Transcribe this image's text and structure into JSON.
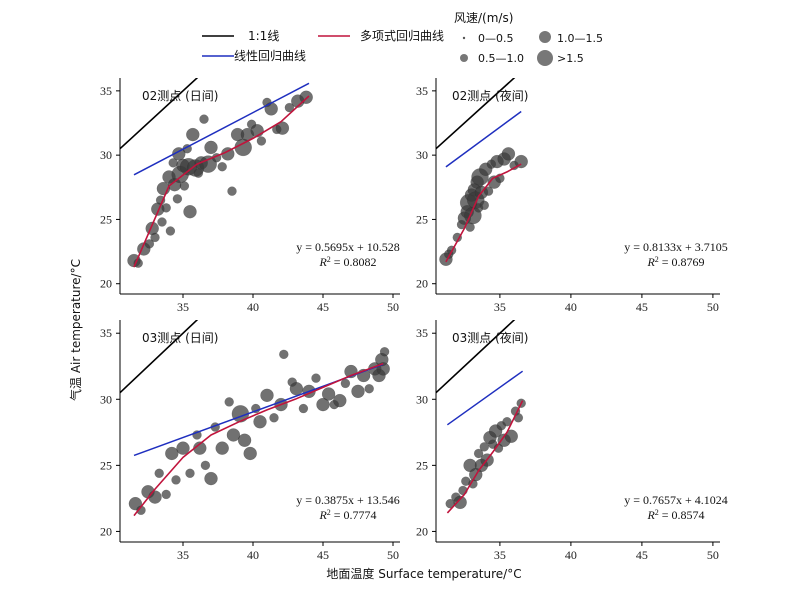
{
  "legend": {
    "lines": [
      {
        "label": "1:1线",
        "color": "#000000"
      },
      {
        "label": "多项式回归曲线",
        "color": "#c0143c"
      },
      {
        "label": "线性回归曲线",
        "color": "#1f2fbf"
      }
    ],
    "wind_title": "风速/(m/s)",
    "wind_classes": [
      "0—0.5",
      "1.0—1.5",
      "0.5—1.0",
      ">1.5"
    ]
  },
  "axes": {
    "xlabel": "地面温度 Surface temperature/°C",
    "ylabel": "气温 Air temperature/°C",
    "x_ticks": [
      "35",
      "40",
      "45",
      "50"
    ],
    "y_ticks": [
      "20",
      "25",
      "30",
      "35"
    ]
  },
  "chart_data": [
    {
      "type": "scatter",
      "title": "02测点 (日间)",
      "xlim": [
        30.5,
        50.5
      ],
      "ylim": [
        19.2,
        36
      ],
      "eqn_main": "y = 0.5695x + 10.528",
      "eqn_r2": "0.8082",
      "linear": [
        0.5695,
        10.528
      ],
      "poly_x": [
        31.5,
        34,
        36,
        38,
        40,
        42,
        44
      ],
      "poly_y": [
        21.3,
        27.6,
        29.3,
        30.2,
        31.3,
        32.6,
        34.6
      ],
      "points": [
        [
          31.5,
          21.8,
          2
        ],
        [
          31.8,
          21.6,
          1
        ],
        [
          32.2,
          22.7,
          2
        ],
        [
          32.6,
          23.1,
          1
        ],
        [
          32.8,
          24.3,
          2
        ],
        [
          33.0,
          23.6,
          1
        ],
        [
          33.2,
          25.8,
          2
        ],
        [
          33.4,
          26.5,
          1
        ],
        [
          33.5,
          24.8,
          1
        ],
        [
          33.6,
          27.4,
          2
        ],
        [
          33.8,
          25.9,
          1
        ],
        [
          34.0,
          28.3,
          2
        ],
        [
          34.1,
          24.1,
          1
        ],
        [
          34.3,
          29.4,
          1
        ],
        [
          34.4,
          27.7,
          2
        ],
        [
          34.6,
          26.6,
          1
        ],
        [
          34.7,
          30.1,
          2
        ],
        [
          34.8,
          28.5,
          3
        ],
        [
          35.0,
          29.2,
          2
        ],
        [
          35.1,
          27.6,
          1
        ],
        [
          35.3,
          30.5,
          1
        ],
        [
          35.4,
          29.1,
          3
        ],
        [
          35.5,
          25.6,
          2
        ],
        [
          35.7,
          31.6,
          2
        ],
        [
          35.9,
          29.0,
          3
        ],
        [
          36.1,
          28.6,
          1
        ],
        [
          36.3,
          29.4,
          2
        ],
        [
          36.5,
          32.8,
          1
        ],
        [
          36.8,
          29.3,
          3
        ],
        [
          37.0,
          30.6,
          2
        ],
        [
          37.4,
          29.8,
          1
        ],
        [
          37.8,
          29.1,
          1
        ],
        [
          38.2,
          30.1,
          2
        ],
        [
          38.5,
          27.2,
          1
        ],
        [
          38.9,
          31.6,
          2
        ],
        [
          39.3,
          30.6,
          3
        ],
        [
          39.6,
          31.6,
          2
        ],
        [
          39.9,
          32.4,
          1
        ],
        [
          40.3,
          31.9,
          2
        ],
        [
          40.6,
          31.1,
          1
        ],
        [
          41.0,
          34.1,
          1
        ],
        [
          41.3,
          33.6,
          2
        ],
        [
          41.7,
          32.0,
          1
        ],
        [
          42.1,
          32.1,
          2
        ],
        [
          42.6,
          33.7,
          1
        ],
        [
          43.2,
          34.2,
          2
        ],
        [
          43.8,
          34.5,
          2
        ]
      ]
    },
    {
      "type": "scatter",
      "title": "02测点 (夜间)",
      "xlim": [
        30.5,
        50.5
      ],
      "ylim": [
        19.2,
        36
      ],
      "eqn_main": "y = 0.8133x + 3.7105",
      "eqn_r2": "0.8769",
      "linear": [
        0.8133,
        3.7105
      ],
      "poly_x": [
        31.2,
        32.5,
        33.5,
        34.5,
        35.5,
        36.5
      ],
      "poly_y": [
        21.7,
        24.3,
        26.8,
        28.2,
        28.7,
        29.3
      ],
      "points": [
        [
          31.2,
          21.9,
          2
        ],
        [
          31.4,
          22.3,
          1
        ],
        [
          31.6,
          22.6,
          1
        ],
        [
          32.0,
          23.6,
          1
        ],
        [
          32.3,
          24.6,
          1
        ],
        [
          32.5,
          25.1,
          2
        ],
        [
          32.7,
          25.6,
          2
        ],
        [
          32.8,
          26.3,
          3
        ],
        [
          32.9,
          24.4,
          1
        ],
        [
          33.0,
          26.9,
          2
        ],
        [
          33.1,
          25.3,
          3
        ],
        [
          33.2,
          27.3,
          2
        ],
        [
          33.3,
          26.5,
          3
        ],
        [
          33.4,
          27.9,
          2
        ],
        [
          33.5,
          25.9,
          1
        ],
        [
          33.6,
          28.3,
          3
        ],
        [
          33.7,
          27.1,
          2
        ],
        [
          33.9,
          26.1,
          1
        ],
        [
          34.0,
          28.9,
          2
        ],
        [
          34.2,
          27.2,
          1
        ],
        [
          34.4,
          29.3,
          1
        ],
        [
          34.6,
          27.9,
          2
        ],
        [
          34.8,
          29.5,
          2
        ],
        [
          35.0,
          28.2,
          1
        ],
        [
          35.3,
          29.7,
          2
        ],
        [
          35.6,
          30.1,
          2
        ],
        [
          36.0,
          29.2,
          1
        ],
        [
          36.5,
          29.5,
          2
        ]
      ]
    },
    {
      "type": "scatter",
      "title": "03测点 (日间)",
      "xlim": [
        30.5,
        50.5
      ],
      "ylim": [
        19.2,
        36
      ],
      "eqn_main": "y = 0.3875x + 13.546",
      "eqn_r2": "0.7774",
      "linear": [
        0.3875,
        13.546
      ],
      "poly_x": [
        31.5,
        33,
        35,
        37,
        39,
        41,
        43,
        45,
        47,
        49.3
      ],
      "poly_y": [
        21.2,
        23.2,
        25.6,
        27.3,
        28.3,
        29.2,
        30.0,
        30.9,
        31.8,
        32.7
      ],
      "points": [
        [
          31.6,
          22.1,
          2
        ],
        [
          32.0,
          21.6,
          1
        ],
        [
          32.5,
          23.0,
          2
        ],
        [
          33.0,
          22.6,
          2
        ],
        [
          33.3,
          24.4,
          1
        ],
        [
          33.8,
          22.8,
          1
        ],
        [
          34.2,
          25.9,
          2
        ],
        [
          34.5,
          23.9,
          1
        ],
        [
          35.0,
          26.3,
          2
        ],
        [
          35.5,
          24.4,
          1
        ],
        [
          36.0,
          27.3,
          1
        ],
        [
          36.2,
          26.3,
          2
        ],
        [
          36.6,
          25.0,
          1
        ],
        [
          37.0,
          24.0,
          2
        ],
        [
          37.3,
          27.9,
          1
        ],
        [
          37.8,
          26.3,
          2
        ],
        [
          38.3,
          29.8,
          1
        ],
        [
          38.6,
          27.3,
          2
        ],
        [
          39.1,
          28.9,
          3
        ],
        [
          39.4,
          26.9,
          2
        ],
        [
          39.8,
          25.9,
          2
        ],
        [
          40.2,
          29.3,
          1
        ],
        [
          40.5,
          28.3,
          2
        ],
        [
          41.0,
          30.3,
          2
        ],
        [
          41.5,
          28.6,
          1
        ],
        [
          42.0,
          29.6,
          2
        ],
        [
          42.2,
          33.4,
          1
        ],
        [
          42.8,
          31.3,
          1
        ],
        [
          43.1,
          30.8,
          2
        ],
        [
          43.6,
          29.3,
          1
        ],
        [
          44.0,
          30.6,
          2
        ],
        [
          44.5,
          31.6,
          1
        ],
        [
          45.0,
          29.6,
          2
        ],
        [
          45.4,
          30.4,
          2
        ],
        [
          45.8,
          29.6,
          1
        ],
        [
          46.2,
          29.9,
          2
        ],
        [
          46.6,
          31.2,
          1
        ],
        [
          47.0,
          32.1,
          2
        ],
        [
          47.5,
          30.6,
          2
        ],
        [
          47.9,
          31.8,
          2
        ],
        [
          48.3,
          30.8,
          1
        ],
        [
          48.7,
          32.3,
          2
        ],
        [
          49.0,
          31.8,
          2
        ],
        [
          49.2,
          33.0,
          2
        ],
        [
          49.4,
          33.6,
          1
        ],
        [
          49.3,
          32.3,
          2
        ]
      ]
    },
    {
      "type": "scatter",
      "title": "03测点 (夜间)",
      "xlim": [
        30.5,
        50.5
      ],
      "ylim": [
        19.2,
        36
      ],
      "eqn_main": "y = 0.7657x + 4.1024",
      "eqn_r2": "0.8574",
      "linear": [
        0.7657,
        4.1024
      ],
      "poly_x": [
        31.3,
        32.5,
        33.5,
        34.5,
        35.5,
        36.6
      ],
      "poly_y": [
        21.4,
        22.8,
        24.6,
        26.0,
        27.5,
        29.9
      ],
      "points": [
        [
          31.5,
          22.1,
          1
        ],
        [
          31.9,
          22.6,
          1
        ],
        [
          32.2,
          22.2,
          2
        ],
        [
          32.4,
          23.1,
          1
        ],
        [
          32.6,
          23.8,
          1
        ],
        [
          32.9,
          25.0,
          2
        ],
        [
          33.1,
          23.6,
          1
        ],
        [
          33.3,
          24.3,
          2
        ],
        [
          33.5,
          25.9,
          1
        ],
        [
          33.7,
          25.0,
          2
        ],
        [
          33.9,
          26.4,
          1
        ],
        [
          34.1,
          25.4,
          2
        ],
        [
          34.3,
          27.1,
          2
        ],
        [
          34.5,
          26.6,
          1
        ],
        [
          34.7,
          27.6,
          2
        ],
        [
          34.9,
          26.3,
          1
        ],
        [
          35.1,
          28.0,
          1
        ],
        [
          35.3,
          26.9,
          2
        ],
        [
          35.5,
          28.3,
          1
        ],
        [
          35.8,
          27.2,
          2
        ],
        [
          36.1,
          29.1,
          1
        ],
        [
          36.3,
          28.6,
          1
        ],
        [
          36.5,
          29.7,
          1
        ]
      ]
    }
  ]
}
